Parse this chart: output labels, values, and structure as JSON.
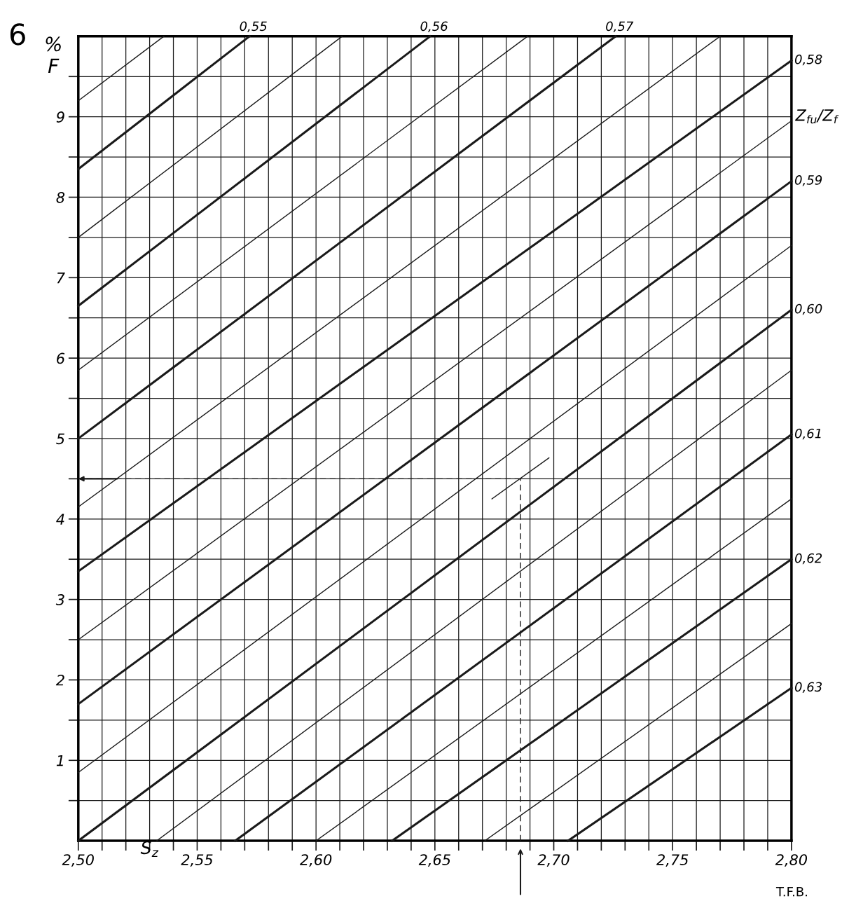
{
  "chart_data": {
    "type": "line",
    "xlabel": "S$_{z}$",
    "ylabel": "%\nF",
    "annotations": [
      "6",
      "Z$_{fu}$/Z$_{f}$",
      "T.F.B."
    ],
    "xlim": [
      2.5,
      2.8
    ],
    "ylim": [
      0,
      10
    ],
    "xticks": [
      {
        "value": 2.5,
        "label": "2,50"
      },
      {
        "value": 2.51,
        "label": null
      },
      {
        "value": 2.52,
        "label": null
      },
      {
        "value": 2.53,
        "label": null
      },
      {
        "value": 2.54,
        "label": null
      },
      {
        "value": 2.55,
        "label": "2,55"
      },
      {
        "value": 2.56,
        "label": null
      },
      {
        "value": 2.57,
        "label": null
      },
      {
        "value": 2.58,
        "label": null
      },
      {
        "value": 2.59,
        "label": null
      },
      {
        "value": 2.6,
        "label": "2,60"
      },
      {
        "value": 2.61,
        "label": null
      },
      {
        "value": 2.62,
        "label": null
      },
      {
        "value": 2.63,
        "label": null
      },
      {
        "value": 2.64,
        "label": null
      },
      {
        "value": 2.65,
        "label": "2,65"
      },
      {
        "value": 2.66,
        "label": null
      },
      {
        "value": 2.67,
        "label": null
      },
      {
        "value": 2.68,
        "label": null
      },
      {
        "value": 2.69,
        "label": null
      },
      {
        "value": 2.7,
        "label": "2,70"
      },
      {
        "value": 2.71,
        "label": null
      },
      {
        "value": 2.72,
        "label": null
      },
      {
        "value": 2.73,
        "label": null
      },
      {
        "value": 2.74,
        "label": null
      },
      {
        "value": 2.75,
        "label": "2,75"
      },
      {
        "value": 2.76,
        "label": null
      },
      {
        "value": 2.77,
        "label": null
      },
      {
        "value": 2.78,
        "label": null
      },
      {
        "value": 2.79,
        "label": null
      },
      {
        "value": 2.8,
        "label": "2,80"
      }
    ],
    "yticks": [
      {
        "value": 0.5,
        "label": null
      },
      1,
      {
        "value": 1.5,
        "label": null
      },
      2,
      {
        "value": 2.5,
        "label": null
      },
      3,
      {
        "value": 3.5,
        "label": null
      },
      4,
      {
        "value": 4.5,
        "label": null
      },
      5,
      {
        "value": 5.5,
        "label": null
      },
      6,
      {
        "value": 6.5,
        "label": null
      },
      7,
      {
        "value": 7.5,
        "label": null
      },
      8,
      {
        "value": 8.5,
        "label": null
      },
      9,
      {
        "value": 9.5,
        "label": null
      }
    ],
    "grid": true,
    "legend": false,
    "series": [
      {
        "name": "0,55",
        "color": "#1a1a1a",
        "x": [
          2.5,
          2.572
        ],
        "values": [
          8.35,
          10
        ]
      },
      {
        "name": "0,56",
        "color": "#1a1a1a",
        "x": [
          2.5,
          2.648
        ],
        "values": [
          6.65,
          10
        ]
      },
      {
        "name": "0,57",
        "color": "#1a1a1a",
        "x": [
          2.5,
          2.726
        ],
        "values": [
          5.0,
          10
        ]
      },
      {
        "name": "0,58",
        "color": "#1a1a1a",
        "x": [
          2.5,
          2.8
        ],
        "values": [
          3.35,
          9.7
        ]
      },
      {
        "name": "0,59",
        "color": "#1a1a1a",
        "x": [
          2.5,
          2.8
        ],
        "values": [
          1.7,
          8.2
        ]
      },
      {
        "name": "0,60",
        "color": "#1a1a1a",
        "x": [
          2.5,
          2.8
        ],
        "values": [
          0,
          6.6
        ]
      },
      {
        "name": "0,61",
        "color": "#1a1a1a",
        "x": [
          2.566,
          2.8
        ],
        "values": [
          0,
          5.05
        ]
      },
      {
        "name": "0,62",
        "color": "#1a1a1a",
        "x": [
          2.632,
          2.8
        ],
        "values": [
          0,
          3.5
        ]
      },
      {
        "name": "0,63",
        "color": "#1a1a1a",
        "x": [
          2.706,
          2.8
        ],
        "values": [
          0,
          1.9
        ]
      },
      {
        "color": "#1a1a1a",
        "x": [
          2.5,
          2.536
        ],
        "values": [
          9.2,
          10
        ]
      },
      {
        "color": "#1a1a1a",
        "x": [
          2.5,
          2.611
        ],
        "values": [
          7.5,
          10
        ]
      },
      {
        "color": "#1a1a1a",
        "x": [
          2.5,
          2.689
        ],
        "values": [
          5.85,
          10
        ]
      },
      {
        "color": "#1a1a1a",
        "x": [
          2.5,
          2.77
        ],
        "values": [
          4.15,
          10
        ]
      },
      {
        "color": "#1a1a1a",
        "x": [
          2.5,
          2.8
        ],
        "values": [
          2.5,
          8.95
        ]
      },
      {
        "color": "#1a1a1a",
        "x": [
          2.5,
          2.8
        ],
        "values": [
          0.85,
          7.4
        ]
      },
      {
        "color": "#1a1a1a",
        "x": [
          2.533,
          2.8
        ],
        "values": [
          0,
          5.85
        ]
      },
      {
        "color": "#1a1a1a",
        "x": [
          2.6,
          2.8
        ],
        "values": [
          0,
          4.25
        ]
      },
      {
        "color": "#1a1a1a",
        "x": [
          2.671,
          2.8
        ],
        "values": [
          0,
          2.7
        ]
      },
      {
        "color": "#1a1a1a",
        "x": [
          2.674,
          2.698
        ],
        "values": [
          4.25,
          4.76
        ]
      },
      {
        "color": "#1a1a1a",
        "x": [
          2.686,
          2.686
        ],
        "values": [
          0,
          4.5
        ],
        "line_style": "dashed"
      },
      {
        "color": "#1a1a1a",
        "x": [
          2.686,
          2.5
        ],
        "values": [
          4.5,
          4.5
        ],
        "line_style": "dashed"
      }
    ]
  }
}
